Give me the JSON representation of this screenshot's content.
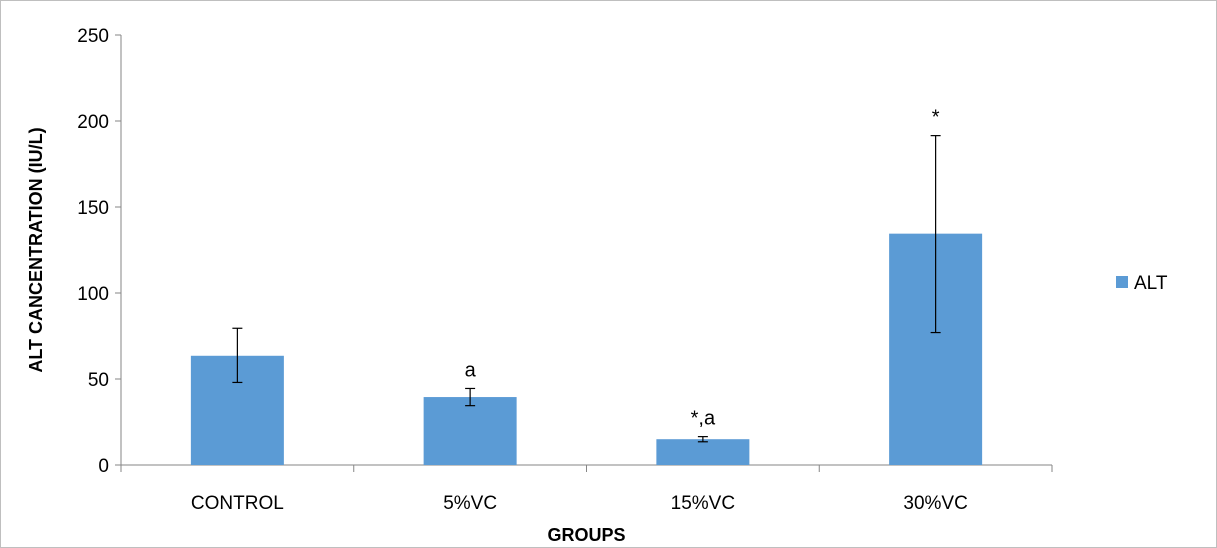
{
  "chart_data": {
    "type": "bar",
    "title": "",
    "xlabel": "GROUPS",
    "ylabel": "ALT CANCENTRATION (IU/L)",
    "categories": [
      "CONTROL",
      "5%VC",
      "15%VC",
      "30%VC"
    ],
    "series": [
      {
        "name": "ALT",
        "color": "#5b9bd5",
        "values": [
          63.5,
          39.5,
          15,
          134.5
        ],
        "error_low": [
          48,
          34.5,
          13.5,
          77
        ],
        "error_high": [
          79.5,
          44.5,
          16.5,
          191.5
        ]
      }
    ],
    "annotations": [
      "",
      "a",
      "*,a",
      "*"
    ],
    "ylim": [
      0,
      250
    ],
    "yticks": [
      0,
      50,
      100,
      150,
      200,
      250
    ],
    "grid": false,
    "legend_position": "right"
  }
}
